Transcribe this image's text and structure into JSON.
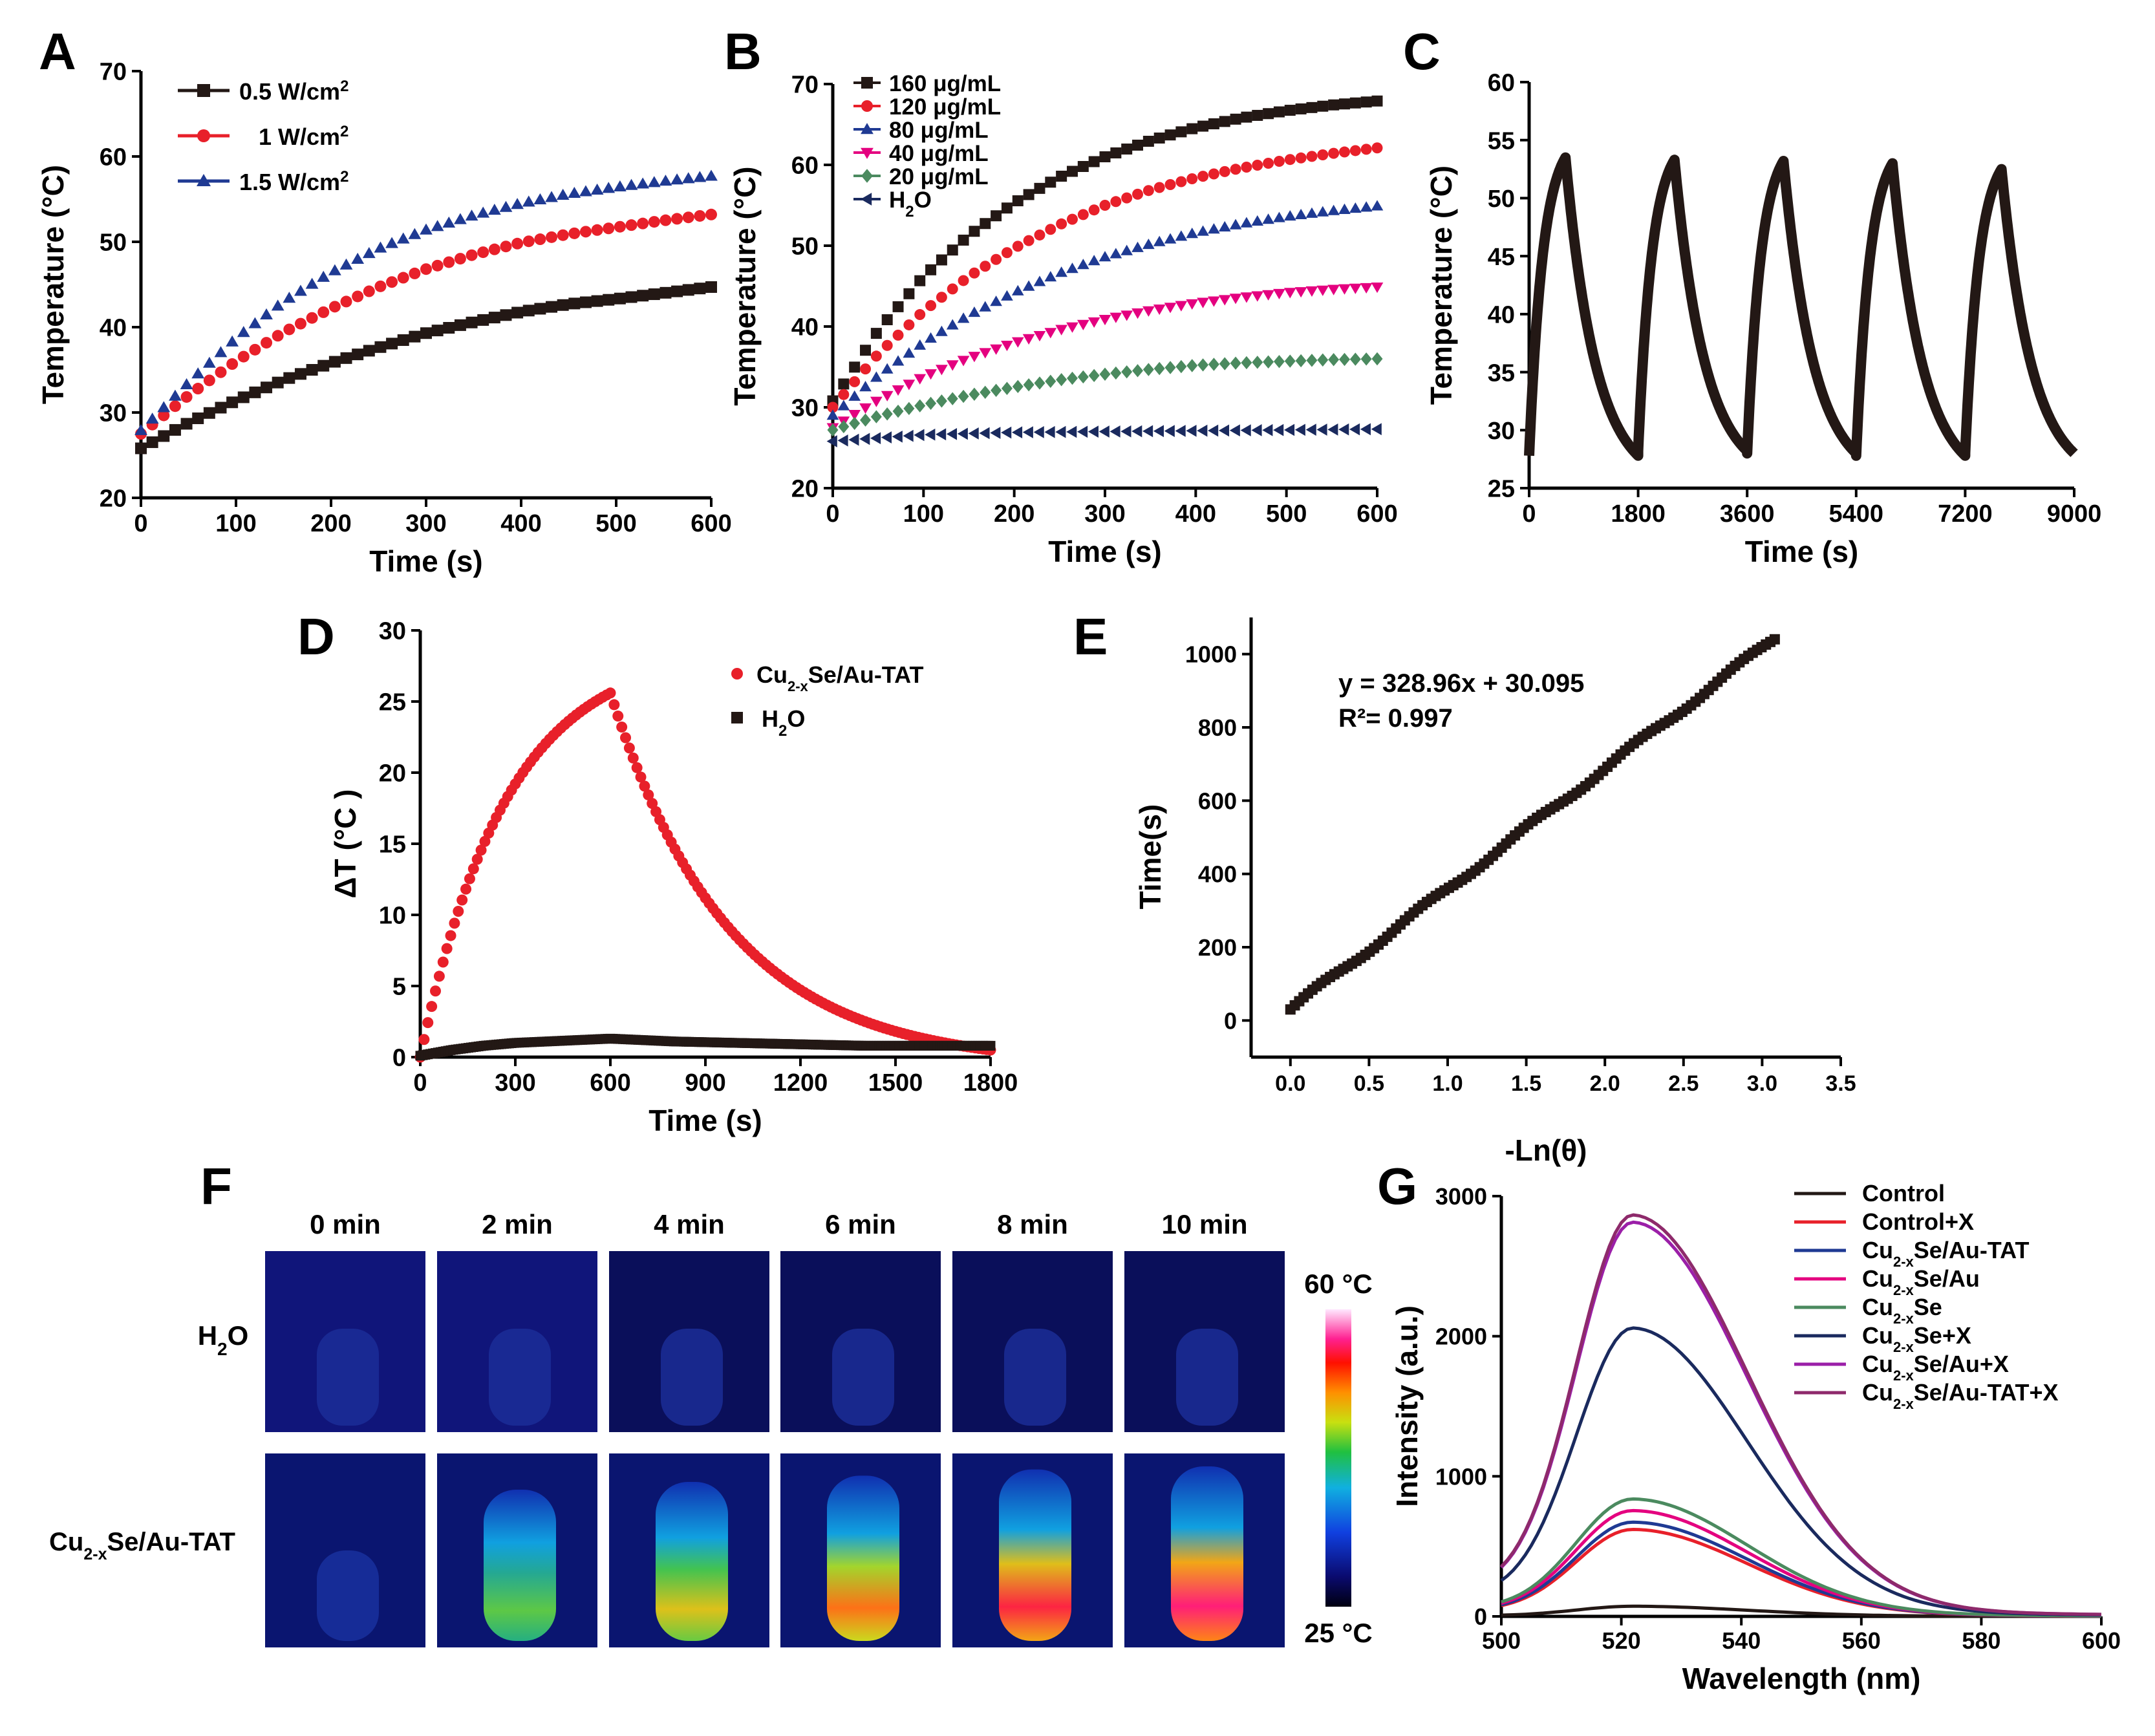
{
  "panels": {
    "A": "A",
    "B": "B",
    "C": "C",
    "D": "D",
    "E": "E",
    "F": "F",
    "G": "G"
  },
  "chart_data": [
    {
      "id": "A",
      "type": "line",
      "xlabel": "Time (s)",
      "ylabel": "Temperature (°C)",
      "xlim": [
        0,
        600
      ],
      "ylim": [
        20,
        70
      ],
      "xticks": [
        0,
        100,
        200,
        300,
        400,
        500,
        600
      ],
      "yticks": [
        20,
        30,
        40,
        50,
        60,
        70
      ],
      "legend_position": "top-left",
      "series": [
        {
          "name": "0.5 W/cm²",
          "color": "#231815",
          "marker": "square",
          "x": [
            0,
            50,
            100,
            150,
            200,
            250,
            300,
            350,
            400,
            450,
            500,
            550,
            600
          ],
          "y": [
            25.8,
            28.8,
            31.4,
            33.8,
            35.8,
            37.6,
            39.3,
            40.6,
            41.8,
            42.7,
            43.3,
            44.0,
            44.7
          ]
        },
        {
          "name": "1 W/cm²",
          "color": "#e8202a",
          "marker": "circle",
          "x": [
            0,
            50,
            100,
            150,
            200,
            250,
            300,
            350,
            400,
            450,
            500,
            550,
            600
          ],
          "y": [
            27.5,
            32.0,
            36.0,
            39.4,
            42.2,
            44.7,
            46.8,
            48.5,
            49.9,
            50.9,
            51.7,
            52.5,
            53.2
          ]
        },
        {
          "name": "1.5 W/cm²",
          "color": "#1f3a93",
          "marker": "triangle",
          "x": [
            0,
            50,
            100,
            150,
            200,
            250,
            300,
            350,
            400,
            450,
            500,
            550,
            600
          ],
          "y": [
            27.9,
            33.5,
            38.7,
            43.0,
            46.4,
            49.2,
            51.4,
            53.1,
            54.5,
            55.6,
            56.4,
            57.1,
            57.7
          ]
        }
      ]
    },
    {
      "id": "B",
      "type": "line",
      "xlabel": "Time (s)",
      "ylabel": "Temperature (°C)",
      "xlim": [
        0,
        600
      ],
      "ylim": [
        25,
        70
      ],
      "xticks": [
        0,
        100,
        200,
        300,
        400,
        500,
        600
      ],
      "yticks": [
        20,
        30,
        40,
        50,
        60,
        70
      ],
      "legend_position": "top-left",
      "series": [
        {
          "name": "160 μg/mL",
          "color": "#231815",
          "marker": "square",
          "x": [
            0,
            50,
            100,
            150,
            200,
            250,
            300,
            350,
            400,
            450,
            500,
            550,
            600
          ],
          "y": [
            30.8,
            39.5,
            46.2,
            51.3,
            55.3,
            58.5,
            61.0,
            63.0,
            64.6,
            65.8,
            66.7,
            67.4,
            67.9
          ]
        },
        {
          "name": "120 μg/mL",
          "color": "#e8202a",
          "marker": "circle",
          "x": [
            0,
            50,
            100,
            150,
            200,
            250,
            300,
            350,
            400,
            450,
            500,
            550,
            600
          ],
          "y": [
            30.0,
            36.6,
            41.9,
            46.2,
            49.7,
            52.6,
            55.0,
            56.9,
            58.4,
            59.6,
            60.6,
            61.4,
            62.1
          ]
        },
        {
          "name": "80 μg/mL",
          "color": "#1f3a93",
          "marker": "triangle",
          "x": [
            0,
            50,
            100,
            150,
            200,
            250,
            300,
            350,
            400,
            450,
            500,
            550,
            600
          ],
          "y": [
            29.0,
            33.9,
            38.0,
            41.4,
            44.2,
            46.6,
            48.6,
            50.2,
            51.6,
            52.7,
            53.6,
            54.3,
            54.9
          ]
        },
        {
          "name": "40 μg/mL",
          "color": "#e4007f",
          "marker": "triangle-down",
          "x": [
            0,
            50,
            100,
            150,
            200,
            250,
            300,
            350,
            400,
            450,
            500,
            550,
            600
          ],
          "y": [
            27.5,
            30.9,
            33.8,
            36.1,
            38.0,
            39.6,
            40.9,
            42.0,
            42.9,
            43.6,
            44.2,
            44.6,
            44.9
          ]
        },
        {
          "name": "20 μg/mL",
          "color": "#4b8a5f",
          "marker": "diamond",
          "x": [
            0,
            50,
            100,
            150,
            200,
            250,
            300,
            350,
            400,
            450,
            500,
            550,
            600
          ],
          "y": [
            27.2,
            28.9,
            30.3,
            31.5,
            32.5,
            33.4,
            34.1,
            34.7,
            35.2,
            35.5,
            35.7,
            35.9,
            36.0
          ]
        },
        {
          "name": "H₂O",
          "color": "#1a2a5e",
          "marker": "triangle-left",
          "x": [
            0,
            100,
            200,
            300,
            400,
            500,
            600
          ],
          "y": [
            25.8,
            26.6,
            26.9,
            27.0,
            27.1,
            27.2,
            27.3
          ]
        }
      ]
    },
    {
      "id": "C",
      "type": "line",
      "xlabel": "Time (s)",
      "ylabel": "Temperature (°C)",
      "xlim": [
        0,
        9000
      ],
      "ylim": [
        25,
        60
      ],
      "xticks": [
        0,
        1800,
        3600,
        5400,
        7200,
        9000
      ],
      "yticks": [
        25,
        30,
        35,
        40,
        45,
        50,
        55,
        60
      ],
      "cycles": [
        {
          "start": 0,
          "peak_time": 600,
          "end": 1800,
          "base": 27.8,
          "peak": 53.5
        },
        {
          "start": 1800,
          "peak_time": 2400,
          "end": 3600,
          "base": 28.2,
          "peak": 53.3
        },
        {
          "start": 3600,
          "peak_time": 4200,
          "end": 5400,
          "base": 28.0,
          "peak": 53.2
        },
        {
          "start": 5400,
          "peak_time": 6000,
          "end": 7200,
          "base": 27.8,
          "peak": 53.0
        },
        {
          "start": 7200,
          "peak_time": 7800,
          "end": 9000,
          "base": 28.0,
          "peak": 52.5
        }
      ],
      "end_value": 27.3
    },
    {
      "id": "D",
      "type": "scatter",
      "xlabel": "Time (s)",
      "ylabel": "ΔT (°C )",
      "xlim": [
        0,
        1800
      ],
      "ylim": [
        0,
        30
      ],
      "xticks": [
        0,
        300,
        600,
        900,
        1200,
        1500,
        1800
      ],
      "yticks": [
        0,
        5,
        10,
        15,
        20,
        25,
        30
      ],
      "legend_position": "top-right",
      "series": [
        {
          "name": "Cu2-xSe/Au-TAT",
          "color": "#e8202a",
          "marker": "circle",
          "heating": {
            "t0": 0,
            "t1": 600,
            "peak": 25.6
          },
          "cooling": {
            "t0": 600,
            "t1": 1800,
            "end": 0.5
          }
        },
        {
          "name": "H₂O",
          "color": "#231815",
          "marker": "square",
          "x": [
            0,
            100,
            200,
            300,
            400,
            500,
            600,
            800,
            1000,
            1200,
            1400,
            1600,
            1800
          ],
          "y": [
            0.1,
            0.5,
            0.8,
            1.0,
            1.1,
            1.2,
            1.3,
            1.1,
            1.0,
            0.9,
            0.8,
            0.8,
            0.8
          ]
        }
      ]
    },
    {
      "id": "E",
      "type": "scatter",
      "xlabel": "-Ln(θ)",
      "ylabel": "Time(s)",
      "xlim": [
        -0.25,
        3.5
      ],
      "ylim": [
        -100,
        1100
      ],
      "xticks": [
        0.0,
        0.5,
        1.0,
        1.5,
        2.0,
        2.5,
        3.0,
        3.5
      ],
      "yticks": [
        0,
        200,
        400,
        600,
        800,
        1000
      ],
      "fit_equation": "y = 328.96x + 30.095",
      "fit_r2": "R²= 0.997",
      "fit": {
        "slope": 328.96,
        "intercept": 30.095
      },
      "x_range": [
        0.0,
        3.1
      ]
    },
    {
      "id": "F",
      "type": "heatmap",
      "time_labels": [
        "0 min",
        "2 min",
        "4 min",
        "6 min",
        "8 min",
        "10 min"
      ],
      "row_labels": [
        "H₂O",
        "Cu2-xSe/Au-TAT"
      ],
      "colorbar_max": "60 °C",
      "colorbar_min": "25 °C",
      "h2o_intensity": [
        0.05,
        0.06,
        0.07,
        0.08,
        0.08,
        0.09
      ],
      "sample_intensity": [
        0.08,
        0.55,
        0.7,
        0.82,
        0.94,
        1.0
      ]
    },
    {
      "id": "G",
      "type": "line",
      "xlabel": "Wavelength (nm)",
      "ylabel": "Intensity (a.u.)",
      "xlim": [
        500,
        600
      ],
      "ylim": [
        0,
        3000
      ],
      "xticks": [
        500,
        520,
        540,
        560,
        580,
        600
      ],
      "yticks": [
        0,
        1000,
        2000,
        3000
      ],
      "legend_position": "top-right",
      "series": [
        {
          "name": "Control",
          "color": "#231815",
          "peak": 70
        },
        {
          "name": "Control+X",
          "color": "#e8202a",
          "peak": 600
        },
        {
          "name": "Cu2-xSe/Au-TAT",
          "color": "#1f3a93",
          "peak": 650
        },
        {
          "name": "Cu2-xSe/Au",
          "color": "#e4007f",
          "peak": 730
        },
        {
          "name": "Cu2-xSe",
          "color": "#4b8a5f",
          "peak": 810
        },
        {
          "name": "Cu2-xSe+X",
          "color": "#1a2a5e",
          "peak": 1990
        },
        {
          "name": "Cu2-xSe/Au+X",
          "color": "#9b1fa8",
          "peak": 2720
        },
        {
          "name": "Cu2-xSe/Au-TAT+X",
          "color": "#8e2a6b",
          "peak": 2770
        }
      ]
    }
  ]
}
